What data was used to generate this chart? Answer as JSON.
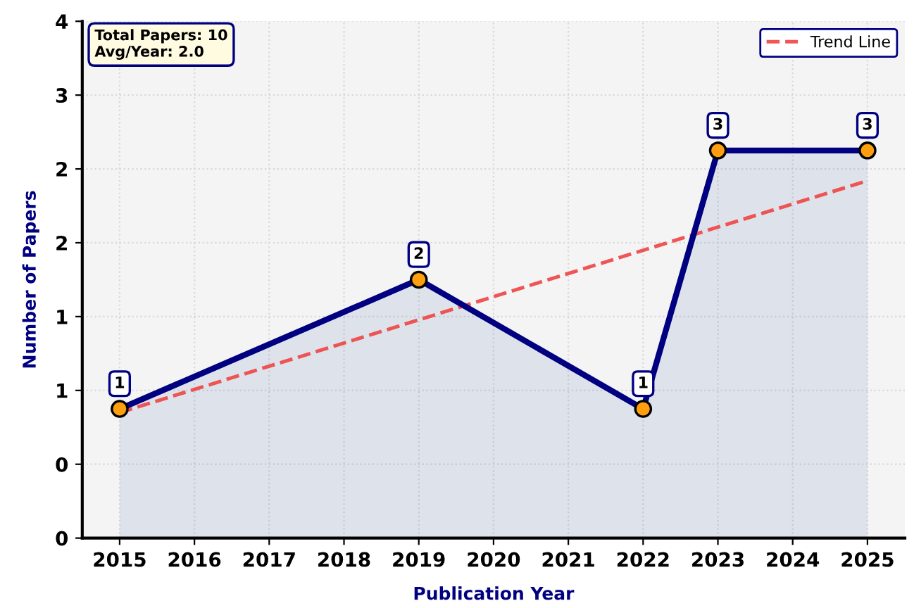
{
  "chart_data": {
    "type": "area",
    "xlabel": "Publication Year",
    "ylabel": "Number of Papers",
    "x": [
      2015,
      2019,
      2022,
      2023,
      2025
    ],
    "series": [
      {
        "color": "#000080",
        "values": [
          0.875,
          1.75,
          0.875,
          2.625,
          2.625
        ],
        "value_labels": [
          "1",
          "2",
          "1",
          "3",
          "3"
        ],
        "marker": "circle"
      },
      {
        "type": "line",
        "name": "Trend Line",
        "color": "#ee4444",
        "x": [
          2015,
          2025
        ],
        "values": [
          0.85,
          2.42
        ],
        "line_style": "dashed",
        "marker": "none"
      }
    ],
    "xlim": [
      2014.5,
      2025.5
    ],
    "xticks": [
      2015,
      2016,
      2017,
      2018,
      2019,
      2020,
      2021,
      2022,
      2023,
      2024,
      2025
    ],
    "ylim": [
      0,
      3.5
    ],
    "yticks": [
      0,
      {
        "value": 0.5,
        "label": "0"
      },
      {
        "value": 1,
        "label": "1"
      },
      {
        "value": 1.5,
        "label": "1"
      },
      {
        "value": 2,
        "label": "2"
      },
      {
        "value": 2.5,
        "label": "2"
      },
      {
        "value": 3,
        "label": "3"
      },
      {
        "value": 3.5,
        "label": "4"
      }
    ],
    "grid": true,
    "legend": "top right",
    "annotations": [
      "Total Papers: 10\nAvg/Year: 2.0"
    ]
  }
}
